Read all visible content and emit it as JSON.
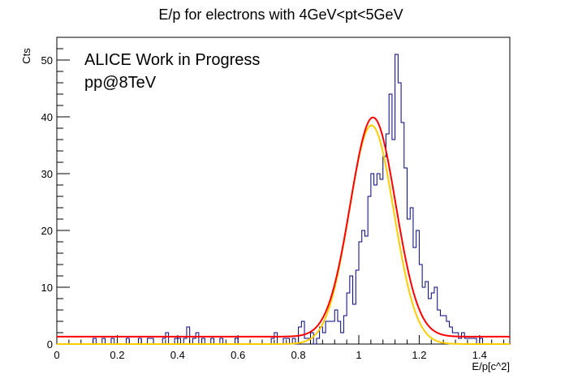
{
  "chart_data": {
    "type": "histogram",
    "title": "E/p for electrons with 4GeV<pt<5GeV",
    "xlabel": "E/p[c^2]",
    "ylabel": "Cts",
    "xlim": [
      0,
      1.5
    ],
    "ylim": [
      0,
      54
    ],
    "xticks": [
      "0",
      "0.2",
      "0.4",
      "0.6",
      "0.8",
      "1",
      "1.2",
      "1.4"
    ],
    "yticks": [
      "0",
      "10",
      "20",
      "30",
      "40",
      "50"
    ],
    "annotations": [
      "ALICE Work in Progress",
      "pp@8TeV"
    ],
    "grid": false,
    "legend": "none",
    "histogram": {
      "bin_width": 0.01,
      "x_start": 0,
      "counts": [
        0,
        0,
        0,
        0,
        0,
        0,
        0,
        0,
        0,
        0,
        0,
        0,
        1,
        0,
        0,
        1,
        0,
        0,
        1,
        0,
        0,
        0,
        0,
        1,
        0,
        0,
        0,
        1,
        0,
        0,
        1,
        1,
        0,
        0,
        0,
        1,
        2,
        0,
        0,
        1,
        1,
        0,
        1,
        3,
        0,
        1,
        2,
        0,
        1,
        0,
        0,
        1,
        0,
        0,
        1,
        0,
        0,
        0,
        0,
        1,
        0,
        0,
        0,
        0,
        0,
        0,
        0,
        0,
        0,
        0,
        0,
        1,
        2,
        0,
        0,
        1,
        1,
        0,
        1,
        0,
        3,
        4,
        1,
        1,
        2,
        0,
        1,
        3,
        2,
        4,
        4,
        4,
        6,
        4,
        2,
        5,
        9,
        12,
        7,
        13,
        18,
        20,
        19,
        26,
        30,
        28,
        30,
        29,
        33,
        37,
        44,
        36,
        51,
        46,
        39,
        31,
        22,
        24,
        17,
        20,
        14,
        10,
        11,
        8,
        9,
        10,
        6,
        5,
        5,
        4,
        3,
        2,
        2,
        1,
        2,
        1,
        1,
        1,
        1,
        0,
        1,
        0,
        0,
        0,
        0,
        0,
        0,
        0,
        0,
        0,
        0
      ],
      "color": "#00007f"
    },
    "fits": [
      {
        "kind": "gaussian + constant",
        "amplitude": 38.6,
        "mean": 1.047,
        "sigma": 0.075,
        "constant": 1.3,
        "color": "#ff0000"
      },
      {
        "kind": "gaussian",
        "amplitude": 38.5,
        "mean": 1.042,
        "sigma": 0.074,
        "constant": 0,
        "color": "#ffcc00"
      }
    ]
  }
}
